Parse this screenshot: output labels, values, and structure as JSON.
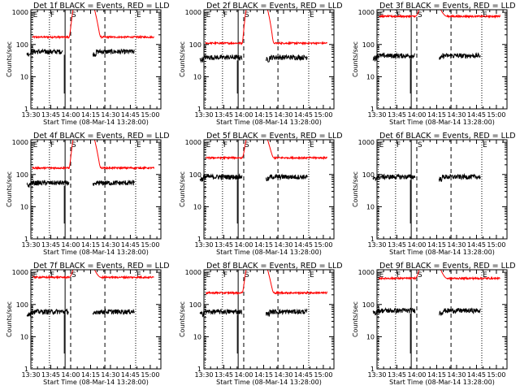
{
  "figure": {
    "xlabel": "Start Time (08-Mar-14 13:28:00)",
    "ylabel": "Counts/sec",
    "x_tick_labels": [
      "13:30",
      "13:45",
      "14:00",
      "14:15",
      "14:30",
      "14:45",
      "15:00"
    ],
    "y_tick_labels": [
      "1",
      "10",
      "100",
      "1000"
    ],
    "colors": {
      "events": "#000000",
      "lld": "#ff0000"
    }
  },
  "chart_data": [
    {
      "type": "line",
      "title": "Det 1f BLACK = Events, RED = LLD",
      "xlabel": "Start Time (08-Mar-14 13:28:00)",
      "ylabel": "Counts/sec",
      "xlim": [
        "13:30",
        "15:08"
      ],
      "ylim": [
        1,
        1200
      ],
      "yscale": "log",
      "series": [
        {
          "name": "Events",
          "color": "#000000",
          "base_counts_per_sec": 60,
          "segments": [
            [
              13.45,
              13.9
            ],
            [
              14.28,
              14.8
            ]
          ]
        },
        {
          "name": "LLD",
          "color": "#ff0000",
          "base_counts_per_sec": 170,
          "saturates_above": 1000,
          "saturated_interval": [
            14.03,
            14.3
          ]
        }
      ],
      "markers": [
        {
          "label": "E",
          "time": "13:31"
        },
        {
          "label": "F",
          "time": "13:44"
        },
        {
          "label": "S",
          "time": "14:00"
        },
        {
          "label": "E",
          "time": "14:49"
        }
      ]
    },
    {
      "type": "line",
      "title": "Det 2f BLACK = Events, RED = LLD",
      "xlabel": "Start Time (08-Mar-14 13:28:00)",
      "ylabel": "Counts/sec",
      "xlim": [
        "13:30",
        "15:08"
      ],
      "ylim": [
        1,
        1200
      ],
      "yscale": "log",
      "series": [
        {
          "name": "Events",
          "color": "#000000",
          "base_counts_per_sec": 40,
          "segments": [
            [
              13.45,
              13.98
            ],
            [
              14.28,
              14.8
            ]
          ]
        },
        {
          "name": "LLD",
          "color": "#ff0000",
          "base_counts_per_sec": 110,
          "saturates_above": 1000,
          "saturated_interval": [
            14.03,
            14.3
          ]
        }
      ],
      "markers": [
        {
          "label": "E",
          "time": "13:31"
        },
        {
          "label": "F",
          "time": "13:44"
        },
        {
          "label": "S",
          "time": "14:00"
        },
        {
          "label": "E",
          "time": "14:49"
        }
      ]
    },
    {
      "type": "line",
      "title": "Det 3f BLACK = Events, RED = LLD",
      "xlabel": "Start Time (08-Mar-14 13:28:00)",
      "ylabel": "Counts/sec",
      "xlim": [
        "13:30",
        "15:08"
      ],
      "ylim": [
        1,
        1200
      ],
      "yscale": "log",
      "series": [
        {
          "name": "Events",
          "color": "#000000",
          "base_counts_per_sec": 45,
          "segments": [
            [
              13.45,
              13.98
            ],
            [
              14.28,
              14.8
            ]
          ]
        },
        {
          "name": "LLD",
          "color": "#ff0000",
          "base_counts_per_sec": 750,
          "saturates_above": 1000,
          "saturated_interval": [
            14.03,
            14.3
          ]
        }
      ],
      "markers": [
        {
          "label": "E",
          "time": "13:31"
        },
        {
          "label": "F",
          "time": "13:44"
        },
        {
          "label": "S",
          "time": "14:00"
        },
        {
          "label": "E",
          "time": "14:49"
        }
      ]
    },
    {
      "type": "line",
      "title": "Det 4f BLACK = Events, RED = LLD",
      "xlabel": "Start Time (08-Mar-14 13:28:00)",
      "ylabel": "Counts/sec",
      "xlim": [
        "13:30",
        "15:08"
      ],
      "ylim": [
        1,
        1200
      ],
      "yscale": "log",
      "series": [
        {
          "name": "Events",
          "color": "#000000",
          "base_counts_per_sec": 55,
          "segments": [
            [
              13.45,
              13.98
            ],
            [
              14.28,
              14.8
            ]
          ]
        },
        {
          "name": "LLD",
          "color": "#ff0000",
          "base_counts_per_sec": 160,
          "saturates_above": 1000,
          "saturated_interval": [
            14.03,
            14.3
          ]
        }
      ],
      "markers": [
        {
          "label": "E",
          "time": "13:31"
        },
        {
          "label": "F",
          "time": "13:44"
        },
        {
          "label": "S",
          "time": "14:00"
        },
        {
          "label": "E",
          "time": "14:49"
        }
      ]
    },
    {
      "type": "line",
      "title": "Det 5f BLACK = Events, RED = LLD",
      "xlabel": "Start Time (08-Mar-14 13:28:00)",
      "ylabel": "Counts/sec",
      "xlim": [
        "13:30",
        "15:08"
      ],
      "ylim": [
        1,
        1200
      ],
      "yscale": "log",
      "series": [
        {
          "name": "Events",
          "color": "#000000",
          "base_counts_per_sec": 85,
          "segments": [
            [
              13.45,
              13.98
            ],
            [
              14.28,
              14.8
            ]
          ]
        },
        {
          "name": "LLD",
          "color": "#ff0000",
          "base_counts_per_sec": 330,
          "saturates_above": 1000,
          "saturated_interval": [
            14.03,
            14.3
          ]
        }
      ],
      "markers": [
        {
          "label": "E",
          "time": "13:31"
        },
        {
          "label": "F",
          "time": "13:44"
        },
        {
          "label": "S",
          "time": "14:00"
        },
        {
          "label": "E",
          "time": "14:49"
        }
      ]
    },
    {
      "type": "line",
      "title": "Det 6f BLACK = Events, RED = LLD",
      "xlabel": "Start Time (08-Mar-14 13:28:00)",
      "ylabel": "Counts/sec",
      "xlim": [
        "13:30",
        "15:08"
      ],
      "ylim": [
        1,
        1200
      ],
      "yscale": "log",
      "series": [
        {
          "name": "Events",
          "color": "#000000",
          "base_counts_per_sec": 85,
          "segments": [
            [
              13.45,
              13.98
            ],
            [
              14.28,
              14.8
            ]
          ]
        },
        {
          "name": "LLD",
          "color": "#ff0000",
          "base_counts_per_sec": null,
          "saturates_above": 1000,
          "saturated_interval": null
        }
      ],
      "markers": [
        {
          "label": "E",
          "time": "13:31"
        },
        {
          "label": "F",
          "time": "13:44"
        },
        {
          "label": "S",
          "time": "14:00"
        },
        {
          "label": "E",
          "time": "14:49"
        }
      ]
    },
    {
      "type": "line",
      "title": "Det 7f BLACK = Events, RED = LLD",
      "xlabel": "Start Time (08-Mar-14 13:28:00)",
      "ylabel": "Counts/sec",
      "xlim": [
        "13:30",
        "15:08"
      ],
      "ylim": [
        1,
        1200
      ],
      "yscale": "log",
      "series": [
        {
          "name": "Events",
          "color": "#000000",
          "base_counts_per_sec": 60,
          "segments": [
            [
              13.45,
              13.98
            ],
            [
              14.28,
              14.8
            ]
          ]
        },
        {
          "name": "LLD",
          "color": "#ff0000",
          "base_counts_per_sec": 700,
          "saturates_above": 1000,
          "saturated_interval": [
            14.03,
            14.3
          ]
        }
      ],
      "markers": [
        {
          "label": "E",
          "time": "13:31"
        },
        {
          "label": "F",
          "time": "13:44"
        },
        {
          "label": "S",
          "time": "14:00"
        },
        {
          "label": "E",
          "time": "14:49"
        }
      ]
    },
    {
      "type": "line",
      "title": "Det 8f BLACK = Events, RED = LLD",
      "xlabel": "Start Time (08-Mar-14 13:28:00)",
      "ylabel": "Counts/sec",
      "xlim": [
        "13:30",
        "15:08"
      ],
      "ylim": [
        1,
        1200
      ],
      "yscale": "log",
      "series": [
        {
          "name": "Events",
          "color": "#000000",
          "base_counts_per_sec": 60,
          "segments": [
            [
              13.45,
              13.98
            ],
            [
              14.28,
              14.8
            ]
          ]
        },
        {
          "name": "LLD",
          "color": "#ff0000",
          "base_counts_per_sec": 230,
          "saturates_above": 1000,
          "saturated_interval": [
            14.03,
            14.3
          ]
        }
      ],
      "markers": [
        {
          "label": "E",
          "time": "13:31"
        },
        {
          "label": "F",
          "time": "13:44"
        },
        {
          "label": "S",
          "time": "14:00"
        },
        {
          "label": "E",
          "time": "14:49"
        }
      ]
    },
    {
      "type": "line",
      "title": "Det 9f BLACK = Events, RED = LLD",
      "xlabel": "Start Time (08-Mar-14 13:28:00)",
      "ylabel": "Counts/sec",
      "xlim": [
        "13:30",
        "15:08"
      ],
      "ylim": [
        1,
        1200
      ],
      "yscale": "log",
      "series": [
        {
          "name": "Events",
          "color": "#000000",
          "base_counts_per_sec": 65,
          "segments": [
            [
              13.45,
              13.98
            ],
            [
              14.28,
              14.8
            ]
          ]
        },
        {
          "name": "LLD",
          "color": "#ff0000",
          "base_counts_per_sec": 650,
          "saturates_above": 1000,
          "saturated_interval": [
            14.03,
            14.3
          ]
        }
      ],
      "markers": [
        {
          "label": "E",
          "time": "13:31"
        },
        {
          "label": "F",
          "time": "13:44"
        },
        {
          "label": "S",
          "time": "14:00"
        },
        {
          "label": "E",
          "time": "14:49"
        }
      ]
    }
  ]
}
